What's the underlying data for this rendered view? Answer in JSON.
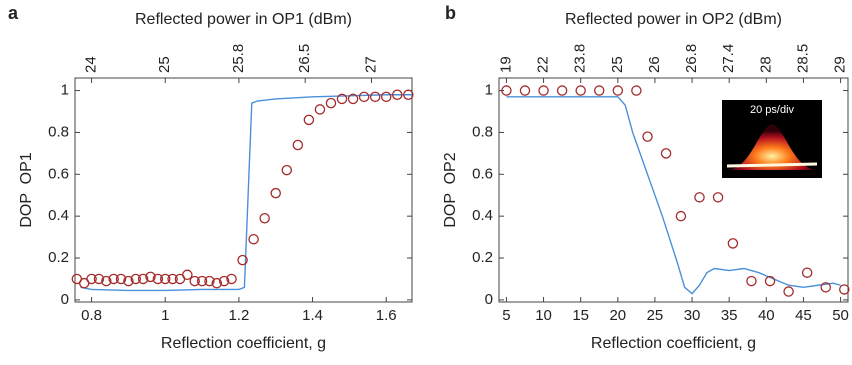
{
  "chart_data": [
    {
      "type": "scatter",
      "panel": "a",
      "x_label": "Reflection coefficient, g",
      "y_label": "DOP  OP1",
      "x2_label": "Reflected power in OP1 (dBm)",
      "xlim": [
        0.755,
        1.67
      ],
      "xticks": [
        0.8,
        1,
        1.2,
        1.4,
        1.6
      ],
      "ylim": [
        -0.01,
        1.06
      ],
      "yticks": [
        0,
        0.2,
        0.4,
        0.6,
        0.8,
        1
      ],
      "x2ticks": [
        24,
        25,
        25.8,
        26.5,
        27
      ],
      "x2tick_at": [
        0.8,
        1,
        1.2,
        1.38,
        1.56
      ],
      "series": [
        {
          "mode": "line",
          "color": "#4a90d9",
          "x": [
            0.77,
            0.8,
            0.9,
            1.0,
            1.1,
            1.2,
            1.215,
            1.225,
            1.235,
            1.25,
            1.3,
            1.4,
            1.5,
            1.6,
            1.67
          ],
          "values": [
            0.06,
            0.05,
            0.045,
            0.045,
            0.05,
            0.05,
            0.06,
            0.5,
            0.94,
            0.95,
            0.96,
            0.97,
            0.975,
            0.98,
            0.98
          ]
        },
        {
          "mode": "markers",
          "color": "#a52a2a",
          "x": [
            0.76,
            0.78,
            0.8,
            0.82,
            0.84,
            0.86,
            0.88,
            0.9,
            0.92,
            0.94,
            0.96,
            0.98,
            1.0,
            1.02,
            1.04,
            1.06,
            1.08,
            1.1,
            1.12,
            1.14,
            1.16,
            1.18,
            1.21,
            1.24,
            1.27,
            1.3,
            1.33,
            1.36,
            1.39,
            1.42,
            1.45,
            1.48,
            1.51,
            1.54,
            1.57,
            1.6,
            1.63,
            1.66
          ],
          "values": [
            0.1,
            0.08,
            0.1,
            0.1,
            0.09,
            0.1,
            0.1,
            0.09,
            0.1,
            0.1,
            0.11,
            0.1,
            0.1,
            0.1,
            0.1,
            0.12,
            0.09,
            0.09,
            0.09,
            0.08,
            0.09,
            0.1,
            0.19,
            0.29,
            0.39,
            0.51,
            0.62,
            0.74,
            0.86,
            0.91,
            0.94,
            0.96,
            0.96,
            0.97,
            0.97,
            0.97,
            0.98,
            0.98
          ]
        }
      ]
    },
    {
      "type": "scatter",
      "panel": "b",
      "x_label": "Reflection coefficient, g",
      "y_label": "DOP  OP2",
      "x2_label": "Reflected power in OP2 (dBm)",
      "inset_label": "20 ps/div",
      "xlim": [
        4,
        51
      ],
      "xticks": [
        5,
        10,
        15,
        20,
        25,
        30,
        35,
        40,
        45,
        50
      ],
      "ylim": [
        -0.01,
        1.06
      ],
      "yticks": [
        0,
        0.2,
        0.4,
        0.6,
        0.8,
        1
      ],
      "x2ticks": [
        19,
        22,
        23.8,
        25,
        26,
        26.8,
        27.4,
        28,
        28.5,
        29
      ],
      "x2tick_at": [
        5,
        10,
        15,
        20,
        25,
        30,
        35,
        40,
        45,
        50
      ],
      "series": [
        {
          "mode": "line",
          "color": "#4a90d9",
          "x": [
            5,
            20,
            21,
            22,
            24,
            26,
            28,
            29,
            30,
            31,
            32,
            33,
            35,
            37,
            39,
            41,
            43,
            45,
            47,
            49,
            50
          ],
          "values": [
            0.97,
            0.97,
            0.93,
            0.8,
            0.6,
            0.4,
            0.18,
            0.06,
            0.03,
            0.07,
            0.13,
            0.15,
            0.14,
            0.15,
            0.13,
            0.1,
            0.07,
            0.06,
            0.07,
            0.08,
            0.07
          ]
        },
        {
          "mode": "markers",
          "color": "#a52a2a",
          "x": [
            5,
            7.5,
            10,
            12.5,
            15,
            17.5,
            20,
            22.5,
            24,
            26.5,
            28.5,
            31,
            33.5,
            35.5,
            38,
            40.5,
            43,
            45.5,
            48,
            50.5
          ],
          "values": [
            1,
            1,
            1,
            1,
            1,
            1,
            1,
            1,
            0.78,
            0.7,
            0.4,
            0.49,
            0.49,
            0.27,
            0.09,
            0.09,
            0.04,
            0.13,
            0.06,
            0.05
          ]
        }
      ]
    }
  ]
}
